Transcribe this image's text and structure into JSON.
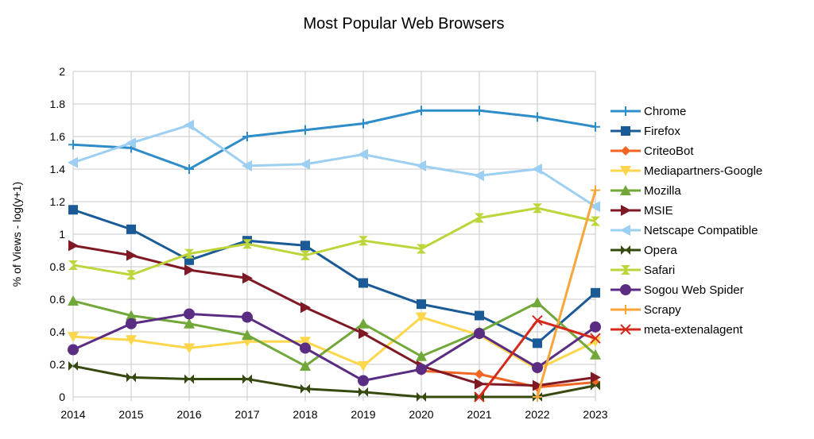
{
  "chart_data": {
    "type": "line",
    "title": "Most Popular Web Browsers",
    "xlabel": "",
    "ylabel": "% of Views - log(y+1)",
    "ylim": [
      0,
      2
    ],
    "yticks": [
      "0",
      "0.2",
      "0.4",
      "0.6",
      "0.8",
      "1",
      "1.2",
      "1.4",
      "1.6",
      "1.8",
      "2"
    ],
    "categories": [
      "2014",
      "2015",
      "2016",
      "2017",
      "2018",
      "2019",
      "2020",
      "2021",
      "2022",
      "2023"
    ],
    "grid": "horizontal",
    "legend": "right",
    "series": [
      {
        "name": "Chrome",
        "color": "#2e8dc8",
        "marker": "plus",
        "values": [
          1.55,
          1.53,
          1.4,
          1.6,
          1.64,
          1.68,
          1.76,
          1.76,
          1.72,
          1.66
        ]
      },
      {
        "name": "Firefox",
        "color": "#1a5a96",
        "marker": "square",
        "values": [
          1.15,
          1.03,
          0.84,
          0.96,
          0.93,
          0.7,
          0.57,
          0.5,
          0.33,
          0.64
        ]
      },
      {
        "name": "CriteoBot",
        "color": "#f26522",
        "marker": "diamond",
        "values": [
          null,
          null,
          null,
          null,
          null,
          null,
          0.16,
          0.14,
          0.06,
          0.09
        ]
      },
      {
        "name": "Mediapartners-Google",
        "color": "#fdd64b",
        "marker": "tri-down",
        "values": [
          0.37,
          0.35,
          0.3,
          0.34,
          0.34,
          0.19,
          0.49,
          0.38,
          0.17,
          0.34
        ]
      },
      {
        "name": "Mozilla",
        "color": "#72a83a",
        "marker": "tri-up",
        "values": [
          0.59,
          0.5,
          0.45,
          0.38,
          0.19,
          0.45,
          0.25,
          0.4,
          0.58,
          0.26
        ]
      },
      {
        "name": "MSIE",
        "color": "#7f1a25",
        "marker": "tri-right",
        "values": [
          0.93,
          0.87,
          0.78,
          0.73,
          0.55,
          0.39,
          0.19,
          0.08,
          0.07,
          0.12
        ]
      },
      {
        "name": "Netscape  Compatible",
        "color": "#9dcff2",
        "marker": "tri-left",
        "values": [
          1.44,
          1.56,
          1.67,
          1.42,
          1.43,
          1.49,
          1.42,
          1.36,
          1.4,
          1.17
        ]
      },
      {
        "name": "Opera",
        "color": "#364a10",
        "marker": "bowtie",
        "values": [
          0.19,
          0.12,
          0.11,
          0.11,
          0.05,
          0.03,
          0,
          0,
          0,
          0.07
        ]
      },
      {
        "name": "Safari",
        "color": "#bdd53a",
        "marker": "hourglass",
        "values": [
          0.81,
          0.75,
          0.88,
          0.94,
          0.87,
          0.96,
          0.91,
          1.1,
          1.16,
          1.08
        ]
      },
      {
        "name": "Sogou  Web  Spider",
        "color": "#5a2d83",
        "marker": "circle",
        "values": [
          0.29,
          0.45,
          0.51,
          0.49,
          0.3,
          0.1,
          0.17,
          0.39,
          0.18,
          0.43
        ]
      },
      {
        "name": "Scrapy",
        "color": "#f8a53a",
        "marker": "plus",
        "values": [
          null,
          null,
          null,
          null,
          null,
          null,
          null,
          null,
          0,
          1.27
        ]
      },
      {
        "name": "meta-extenalagent",
        "color": "#d42a1c",
        "marker": "x",
        "values": [
          null,
          null,
          null,
          null,
          null,
          null,
          null,
          0,
          0.47,
          0.36
        ]
      }
    ]
  }
}
